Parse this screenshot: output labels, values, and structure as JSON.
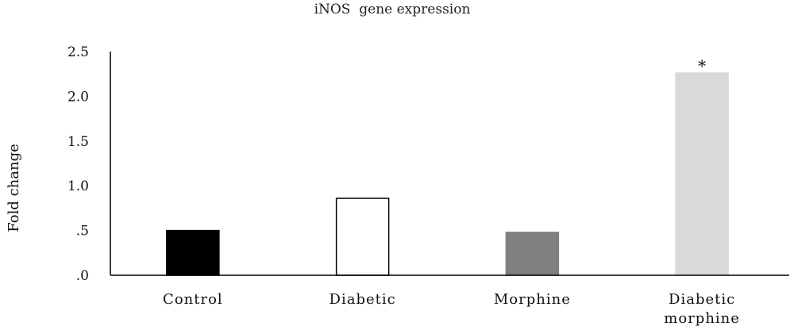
{
  "chart_data": {
    "type": "bar",
    "title": "iNOS  gene expression",
    "xlabel": "",
    "ylabel": "Fold change",
    "ylim": [
      0,
      2.5
    ],
    "yticks": [
      0,
      0.5,
      1.0,
      1.5,
      2.0,
      2.5
    ],
    "ytick_labels": [
      ".0",
      ".5",
      "1.0",
      "1.5",
      "2.0",
      "2.5"
    ],
    "categories": [
      [
        "Control"
      ],
      [
        "Diabetic"
      ],
      [
        "Morphine"
      ],
      [
        "Diabetic",
        "morphine"
      ]
    ],
    "values": [
      0.5,
      0.86,
      0.48,
      2.26
    ],
    "bar_colors": [
      "#000000",
      "#ffffff",
      "#7f7f7f",
      "#d9d9d9"
    ],
    "bar_edge_colors": [
      "#000000",
      "#000000",
      "#7f7f7f",
      "#d9d9d9"
    ],
    "annotations": [
      {
        "category_index": 3,
        "text": "*"
      }
    ],
    "grid": false,
    "legend": "none"
  }
}
